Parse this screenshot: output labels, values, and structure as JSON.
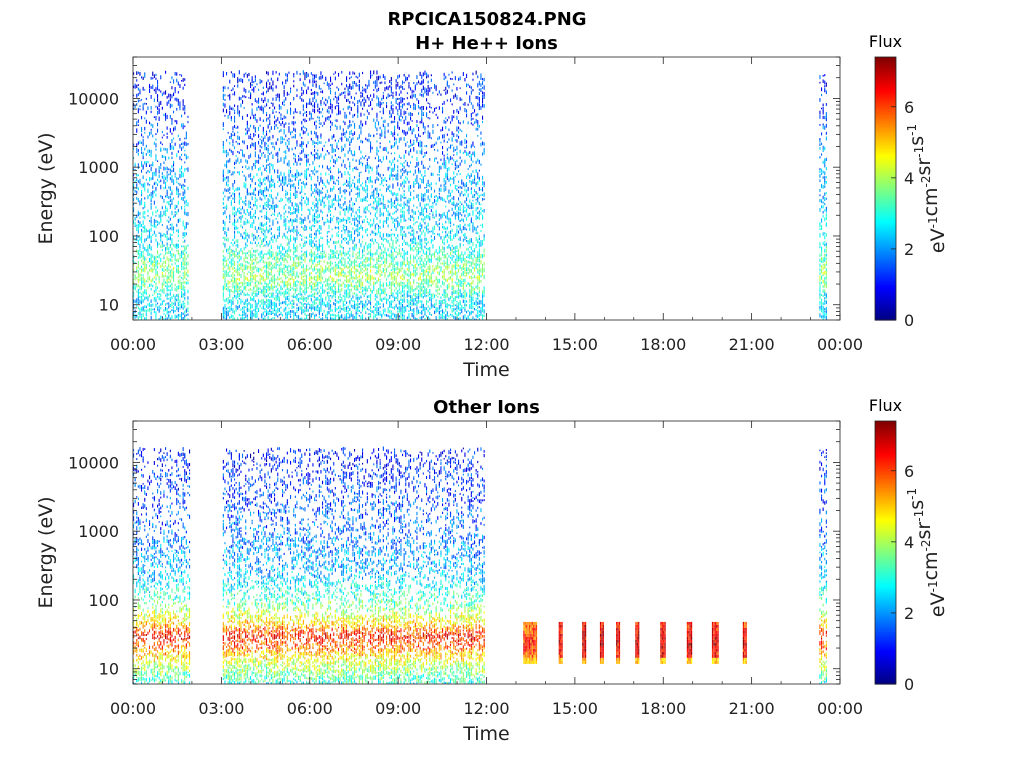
{
  "figure": {
    "title": "RPCICA150824.PNG",
    "colorbar_label_parts": [
      "eV",
      "-1",
      "cm",
      "-2",
      "sr",
      "-1",
      "s",
      "-1"
    ]
  },
  "chart_data": [
    {
      "type": "heatmap",
      "title": "H+ He++ Ions",
      "xlabel": "Time",
      "ylabel": "Energy (eV)",
      "x_ticks": [
        "00:00",
        "03:00",
        "06:00",
        "09:00",
        "12:00",
        "15:00",
        "18:00",
        "21:00",
        "00:00"
      ],
      "xlim_hours": [
        0,
        24
      ],
      "y_ticks": [
        "10",
        "100",
        "1000",
        "10000"
      ],
      "ylim_ev": [
        6,
        40000
      ],
      "y_scale": "log",
      "colorbar": {
        "title": "Flux",
        "ticks": [
          "0",
          "2",
          "4",
          "6"
        ],
        "range": [
          0,
          7.4
        ],
        "colormap": "jet"
      },
      "data_intervals_hours": [
        [
          0.0,
          1.85
        ],
        [
          3.05,
          11.95
        ],
        [
          23.3,
          23.55
        ]
      ],
      "energy_profile": [
        {
          "ev": 6,
          "flux": 2.4
        },
        {
          "ev": 12,
          "flux": 2.6
        },
        {
          "ev": 25,
          "flux": 3.9
        },
        {
          "ev": 45,
          "flux": 3.3
        },
        {
          "ev": 100,
          "flux": 2.5
        },
        {
          "ev": 300,
          "flux": 2.3
        },
        {
          "ev": 1000,
          "flux": 2.0
        },
        {
          "ev": 3000,
          "flux": 1.6
        },
        {
          "ev": 10000,
          "flux": 1.2
        },
        {
          "ev": 15000,
          "flux": 1.1
        }
      ],
      "bursts": []
    },
    {
      "type": "heatmap",
      "title": "Other Ions",
      "xlabel": "Time",
      "ylabel": "Energy (eV)",
      "x_ticks": [
        "00:00",
        "03:00",
        "06:00",
        "09:00",
        "12:00",
        "15:00",
        "18:00",
        "21:00",
        "00:00"
      ],
      "xlim_hours": [
        0,
        24
      ],
      "y_ticks": [
        "10",
        "100",
        "1000",
        "10000"
      ],
      "ylim_ev": [
        6,
        40000
      ],
      "y_scale": "log",
      "colorbar": {
        "title": "Flux",
        "ticks": [
          "0",
          "2",
          "4",
          "6"
        ],
        "range": [
          0,
          7.4
        ],
        "colormap": "jet"
      },
      "data_intervals_hours": [
        [
          0.0,
          1.95
        ],
        [
          3.05,
          11.95
        ],
        [
          23.3,
          23.55
        ]
      ],
      "energy_profile": [
        {
          "ev": 6,
          "flux": 3.0
        },
        {
          "ev": 12,
          "flux": 4.2
        },
        {
          "ev": 20,
          "flux": 5.6
        },
        {
          "ev": 30,
          "flux": 6.4
        },
        {
          "ev": 45,
          "flux": 5.0
        },
        {
          "ev": 80,
          "flux": 3.6
        },
        {
          "ev": 200,
          "flux": 2.4
        },
        {
          "ev": 600,
          "flux": 1.9
        },
        {
          "ev": 2000,
          "flux": 1.5
        },
        {
          "ev": 10000,
          "flux": 1.1
        }
      ],
      "bursts": [
        {
          "start_h": 13.25,
          "end_h": 13.7,
          "ev_low": 13,
          "ev_high": 48,
          "flux": 6.2
        },
        {
          "start_h": 14.45,
          "end_h": 14.55,
          "ev_low": 13,
          "ev_high": 48,
          "flux": 6.8
        },
        {
          "start_h": 15.25,
          "end_h": 15.35,
          "ev_low": 13,
          "ev_high": 48,
          "flux": 6.9
        },
        {
          "start_h": 15.85,
          "end_h": 15.95,
          "ev_low": 13,
          "ev_high": 48,
          "flux": 6.9
        },
        {
          "start_h": 16.4,
          "end_h": 16.5,
          "ev_low": 13,
          "ev_high": 48,
          "flux": 6.7
        },
        {
          "start_h": 17.05,
          "end_h": 17.15,
          "ev_low": 13,
          "ev_high": 48,
          "flux": 6.9
        },
        {
          "start_h": 17.9,
          "end_h": 18.05,
          "ev_low": 13,
          "ev_high": 48,
          "flux": 6.8
        },
        {
          "start_h": 18.8,
          "end_h": 18.95,
          "ev_low": 13,
          "ev_high": 48,
          "flux": 6.9
        },
        {
          "start_h": 19.65,
          "end_h": 19.85,
          "ev_low": 13,
          "ev_high": 48,
          "flux": 6.8
        },
        {
          "start_h": 20.7,
          "end_h": 20.8,
          "ev_low": 13,
          "ev_high": 48,
          "flux": 6.7
        }
      ]
    }
  ]
}
